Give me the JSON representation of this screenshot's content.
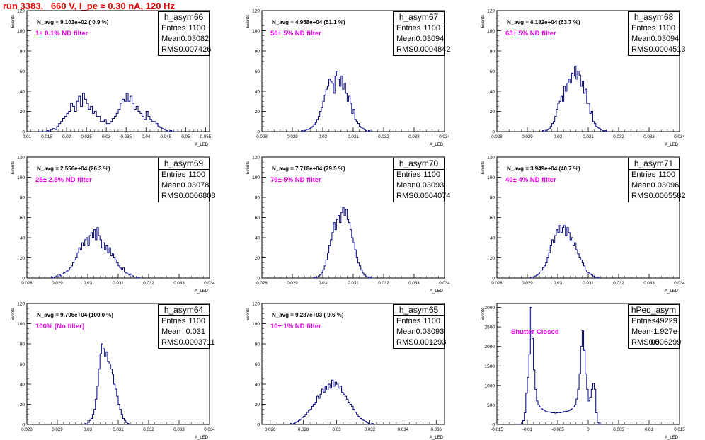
{
  "run_title": "run 3383,   660 V, I_pe ≈ 0.30 nA, 120 Hz",
  "colors": {
    "histogram_line": "#000080",
    "title_red": "#e00000",
    "magenta": "#e600e6"
  },
  "chart_data": [
    {
      "type": "bar",
      "name": "h_asym66",
      "stats": {
        "entries": "1100",
        "mean": "0.03082",
        "rms": "0.007426"
      },
      "navg": "N_avg = 9.103e+02 ( 0.9 %)",
      "filter": "1± 0.1% ND filter",
      "xlabel": "A_LED",
      "ylabel": "Events",
      "xlim": [
        0.01,
        0.056
      ],
      "ylim": [
        0,
        120
      ],
      "xticks": [
        0.01,
        0.015,
        0.02,
        0.025,
        0.03,
        0.035,
        0.04,
        0.045,
        0.05,
        0.055
      ],
      "xtick_labels": [
        "0.01",
        "0.015",
        "0.02",
        "0.025",
        "0.03",
        "0.035",
        "0.04",
        "0.045",
        "0.05",
        "0.055"
      ],
      "yticks": [
        0,
        20,
        40,
        60,
        80,
        100,
        120
      ],
      "bins": {
        "start": 0.013,
        "width": 0.0005,
        "values": [
          0,
          0,
          0,
          0,
          1,
          0,
          2,
          3,
          2,
          5,
          8,
          10,
          13,
          15,
          18,
          20,
          28,
          25,
          20,
          30,
          35,
          25,
          38,
          32,
          28,
          22,
          25,
          18,
          20,
          15,
          15,
          10,
          10,
          12,
          8,
          8,
          10,
          13,
          15,
          18,
          22,
          28,
          32,
          30,
          38,
          30,
          35,
          28,
          22,
          25,
          20,
          18,
          15,
          12,
          20,
          15,
          12,
          10,
          10,
          8,
          5,
          4,
          3,
          2,
          1,
          0,
          1,
          0,
          0,
          0
        ]
      }
    },
    {
      "type": "bar",
      "name": "h_asym67",
      "stats": {
        "entries": "1100",
        "mean": "0.03094",
        "rms": "0.0004842"
      },
      "navg": "N_avg = 4.958e+04 (51.1 %)",
      "filter": "50± 5% ND filter",
      "xlabel": "A_LED",
      "ylabel": "Events",
      "xlim": [
        0.028,
        0.034
      ],
      "ylim": [
        0,
        120
      ],
      "xticks": [
        0.028,
        0.029,
        0.03,
        0.031,
        0.032,
        0.033,
        0.034
      ],
      "xtick_labels": [
        "0.028",
        "0.029",
        "0.03",
        "0.031",
        "0.032",
        "0.033",
        "0.034"
      ],
      "yticks": [
        0,
        20,
        40,
        60,
        80,
        100,
        120
      ],
      "bins": {
        "start": 0.0293,
        "width": 5e-05,
        "values": [
          1,
          0,
          1,
          2,
          2,
          3,
          4,
          5,
          7,
          9,
          12,
          15,
          20,
          24,
          30,
          36,
          42,
          45,
          52,
          50,
          48,
          38,
          55,
          60,
          52,
          45,
          55,
          42,
          48,
          38,
          30,
          35,
          28,
          18,
          22,
          12,
          10,
          8,
          5,
          4,
          3,
          2,
          1,
          0,
          1,
          0
        ]
      }
    },
    {
      "type": "bar",
      "name": "h_asym68",
      "stats": {
        "entries": "1100",
        "mean": "0.03094",
        "rms": "0.0004513"
      },
      "navg": "N_avg = 6.182e+04 (63.7 %)",
      "filter": "63± 5% ND filter",
      "xlabel": "A_LED",
      "ylabel": "Events",
      "xlim": [
        0.028,
        0.034
      ],
      "ylim": [
        0,
        120
      ],
      "xticks": [
        0.028,
        0.029,
        0.03,
        0.031,
        0.032,
        0.033,
        0.034
      ],
      "xtick_labels": [
        "0.028",
        "0.029",
        "0.03",
        "0.031",
        "0.032",
        "0.033",
        "0.034"
      ],
      "yticks": [
        0,
        20,
        40,
        60,
        80,
        100,
        120
      ],
      "bins": {
        "start": 0.0295,
        "width": 5e-05,
        "values": [
          1,
          0,
          1,
          2,
          3,
          5,
          8,
          10,
          15,
          22,
          28,
          30,
          35,
          30,
          45,
          40,
          48,
          52,
          48,
          58,
          55,
          65,
          52,
          60,
          56,
          45,
          50,
          38,
          42,
          28,
          28,
          18,
          20,
          10,
          8,
          5,
          4,
          3,
          2,
          1,
          0,
          1,
          0,
          0
        ]
      }
    },
    {
      "type": "bar",
      "name": "h_asym69",
      "stats": {
        "entries": "1100",
        "mean": "0.03078",
        "rms": "0.0006808"
      },
      "navg": "N_avg = 2.556e+04 (26.3 %)",
      "filter": "25± 2.5% ND filter",
      "xlabel": "A_LED",
      "ylabel": "Events",
      "xlim": [
        0.028,
        0.034
      ],
      "ylim": [
        0,
        120
      ],
      "xticks": [
        0.028,
        0.029,
        0.03,
        0.031,
        0.032,
        0.033,
        0.034
      ],
      "xtick_labels": [
        "0.028",
        "0.029",
        "0.03",
        "0.031",
        "0.032",
        "0.033",
        "0.034"
      ],
      "yticks": [
        0,
        20,
        40,
        60,
        80,
        100,
        120
      ],
      "bins": {
        "start": 0.0288,
        "width": 5e-05,
        "values": [
          1,
          0,
          1,
          2,
          1,
          3,
          2,
          4,
          5,
          6,
          7,
          8,
          10,
          12,
          15,
          18,
          20,
          25,
          30,
          28,
          35,
          32,
          38,
          40,
          32,
          42,
          45,
          40,
          48,
          38,
          50,
          42,
          38,
          30,
          35,
          28,
          32,
          25,
          30,
          22,
          24,
          20,
          18,
          15,
          12,
          10,
          8,
          10,
          6,
          5,
          4,
          3,
          4,
          2,
          1,
          1,
          0,
          1,
          0
        ]
      }
    },
    {
      "type": "bar",
      "name": "h_asym70",
      "stats": {
        "entries": "1100",
        "mean": "0.03093",
        "rms": "0.0004074"
      },
      "navg": "N_avg = 7.718e+04 (79.5 %)",
      "filter": "79± 5% ND filter",
      "xlabel": "A_LED",
      "ylabel": "Events",
      "xlim": [
        0.028,
        0.034
      ],
      "ylim": [
        0,
        120
      ],
      "xticks": [
        0.028,
        0.029,
        0.03,
        0.031,
        0.032,
        0.033,
        0.034
      ],
      "xtick_labels": [
        "0.028",
        "0.029",
        "0.03",
        "0.031",
        "0.032",
        "0.033",
        "0.034"
      ],
      "yticks": [
        0,
        20,
        40,
        60,
        80,
        100,
        120
      ],
      "bins": {
        "start": 0.0297,
        "width": 5e-05,
        "values": [
          1,
          0,
          1,
          2,
          3,
          5,
          8,
          12,
          18,
          25,
          32,
          38,
          45,
          55,
          48,
          58,
          62,
          55,
          65,
          70,
          62,
          68,
          58,
          55,
          48,
          40,
          35,
          28,
          20,
          15,
          12,
          8,
          5,
          3,
          2,
          1,
          0,
          1,
          0
        ]
      }
    },
    {
      "type": "bar",
      "name": "h_asym71",
      "stats": {
        "entries": "1100",
        "mean": "0.03096",
        "rms": "0.0005582"
      },
      "navg": "N_avg = 3.949e+04 (40.7 %)",
      "filter": "40± 4% ND filter",
      "xlabel": "A_LED",
      "ylabel": "Events",
      "xlim": [
        0.028,
        0.034
      ],
      "ylim": [
        0,
        120
      ],
      "xticks": [
        0.028,
        0.029,
        0.03,
        0.031,
        0.032,
        0.033,
        0.034
      ],
      "xtick_labels": [
        "0.028",
        "0.029",
        "0.03",
        "0.031",
        "0.032",
        "0.033",
        "0.034"
      ],
      "yticks": [
        0,
        20,
        40,
        60,
        80,
        100,
        120
      ],
      "bins": {
        "start": 0.0291,
        "width": 5e-05,
        "values": [
          1,
          0,
          1,
          2,
          3,
          4,
          6,
          8,
          10,
          12,
          15,
          20,
          25,
          32,
          38,
          35,
          42,
          48,
          45,
          52,
          45,
          50,
          52,
          42,
          50,
          45,
          38,
          40,
          32,
          35,
          28,
          24,
          20,
          18,
          15,
          12,
          8,
          6,
          5,
          4,
          3,
          2,
          1,
          0,
          1,
          0
        ]
      }
    },
    {
      "type": "bar",
      "name": "h_asym64",
      "stats": {
        "entries": "1100",
        "mean": "0.031",
        "rms": "0.0003711"
      },
      "navg": "N_avg = 9.706e+04 (100.0 %)",
      "filter": "100% (No filter)",
      "xlabel": "A_LED",
      "ylabel": "Events",
      "xlim": [
        0.028,
        0.034
      ],
      "ylim": [
        0,
        120
      ],
      "xticks": [
        0.028,
        0.029,
        0.03,
        0.031,
        0.032,
        0.033,
        0.034
      ],
      "xtick_labels": [
        "0.028",
        "0.029",
        "0.03",
        "0.031",
        "0.032",
        "0.033",
        "0.034"
      ],
      "yticks": [
        0,
        20,
        40,
        60,
        80,
        100,
        120
      ],
      "bins": {
        "start": 0.0299,
        "width": 5e-05,
        "values": [
          1,
          0,
          2,
          4,
          6,
          10,
          15,
          25,
          38,
          55,
          70,
          80,
          75,
          68,
          72,
          62,
          60,
          55,
          50,
          40,
          35,
          28,
          20,
          15,
          10,
          6,
          4,
          2,
          1,
          0
        ]
      }
    },
    {
      "type": "bar",
      "name": "h_asym65",
      "stats": {
        "entries": "1100",
        "mean": "0.03093",
        "rms": "0.001293"
      },
      "navg": "N_avg = 9.287e+03 ( 9.6 %)",
      "filter": "10± 1% ND filter",
      "xlabel": "A_LED",
      "ylabel": "Events",
      "xlim": [
        0.0255,
        0.0365
      ],
      "ylim": [
        0,
        120
      ],
      "xticks": [
        0.026,
        0.028,
        0.03,
        0.032,
        0.034,
        0.036
      ],
      "xtick_labels": [
        "0.026",
        "0.028",
        "0.03",
        "0.032",
        "0.034",
        "0.036"
      ],
      "yticks": [
        0,
        20,
        40,
        60,
        80,
        100,
        120
      ],
      "bins": {
        "start": 0.0272,
        "width": 0.0001,
        "values": [
          1,
          0,
          1,
          2,
          3,
          4,
          5,
          7,
          8,
          10,
          12,
          14,
          15,
          18,
          20,
          22,
          28,
          26,
          30,
          35,
          32,
          38,
          34,
          40,
          36,
          44,
          38,
          42,
          40,
          36,
          38,
          32,
          30,
          28,
          25,
          22,
          20,
          18,
          15,
          12,
          10,
          8,
          6,
          5,
          4,
          3,
          2,
          1,
          0,
          1,
          0
        ]
      }
    },
    {
      "type": "bar",
      "name": "hPed_asym",
      "stats": {
        "entries": "49229",
        "mean": "-1.927e-05",
        "rms": "0.006299"
      },
      "label": "Shutter Closed",
      "xlabel": "A_LED",
      "ylabel": "Events",
      "xlim": [
        -0.015,
        0.015
      ],
      "ylim": [
        0,
        3100
      ],
      "xticks": [
        -0.015,
        -0.01,
        -0.005,
        0,
        0.005,
        0.01,
        0.015
      ],
      "xtick_labels": [
        "-0.015",
        "-0.01",
        "-0.005",
        "0",
        "0.005",
        "0.01",
        "0.015"
      ],
      "yticks": [
        0,
        500,
        1000,
        1500,
        2000,
        2500,
        3000
      ],
      "bins": {
        "start": -0.0115,
        "width": 0.00025,
        "values": [
          0,
          0,
          20,
          100,
          300,
          800,
          1200,
          1800,
          3000,
          2200,
          1400,
          900,
          600,
          500,
          450,
          400,
          380,
          350,
          330,
          320,
          320,
          310,
          300,
          300,
          290,
          300,
          310,
          300,
          310,
          320,
          330,
          330,
          340,
          360,
          380,
          400,
          450,
          500,
          650,
          900,
          1300,
          2000,
          2400,
          1900,
          1300,
          900,
          600,
          700,
          900,
          1050,
          900,
          300,
          50,
          0,
          0
        ]
      }
    }
  ]
}
